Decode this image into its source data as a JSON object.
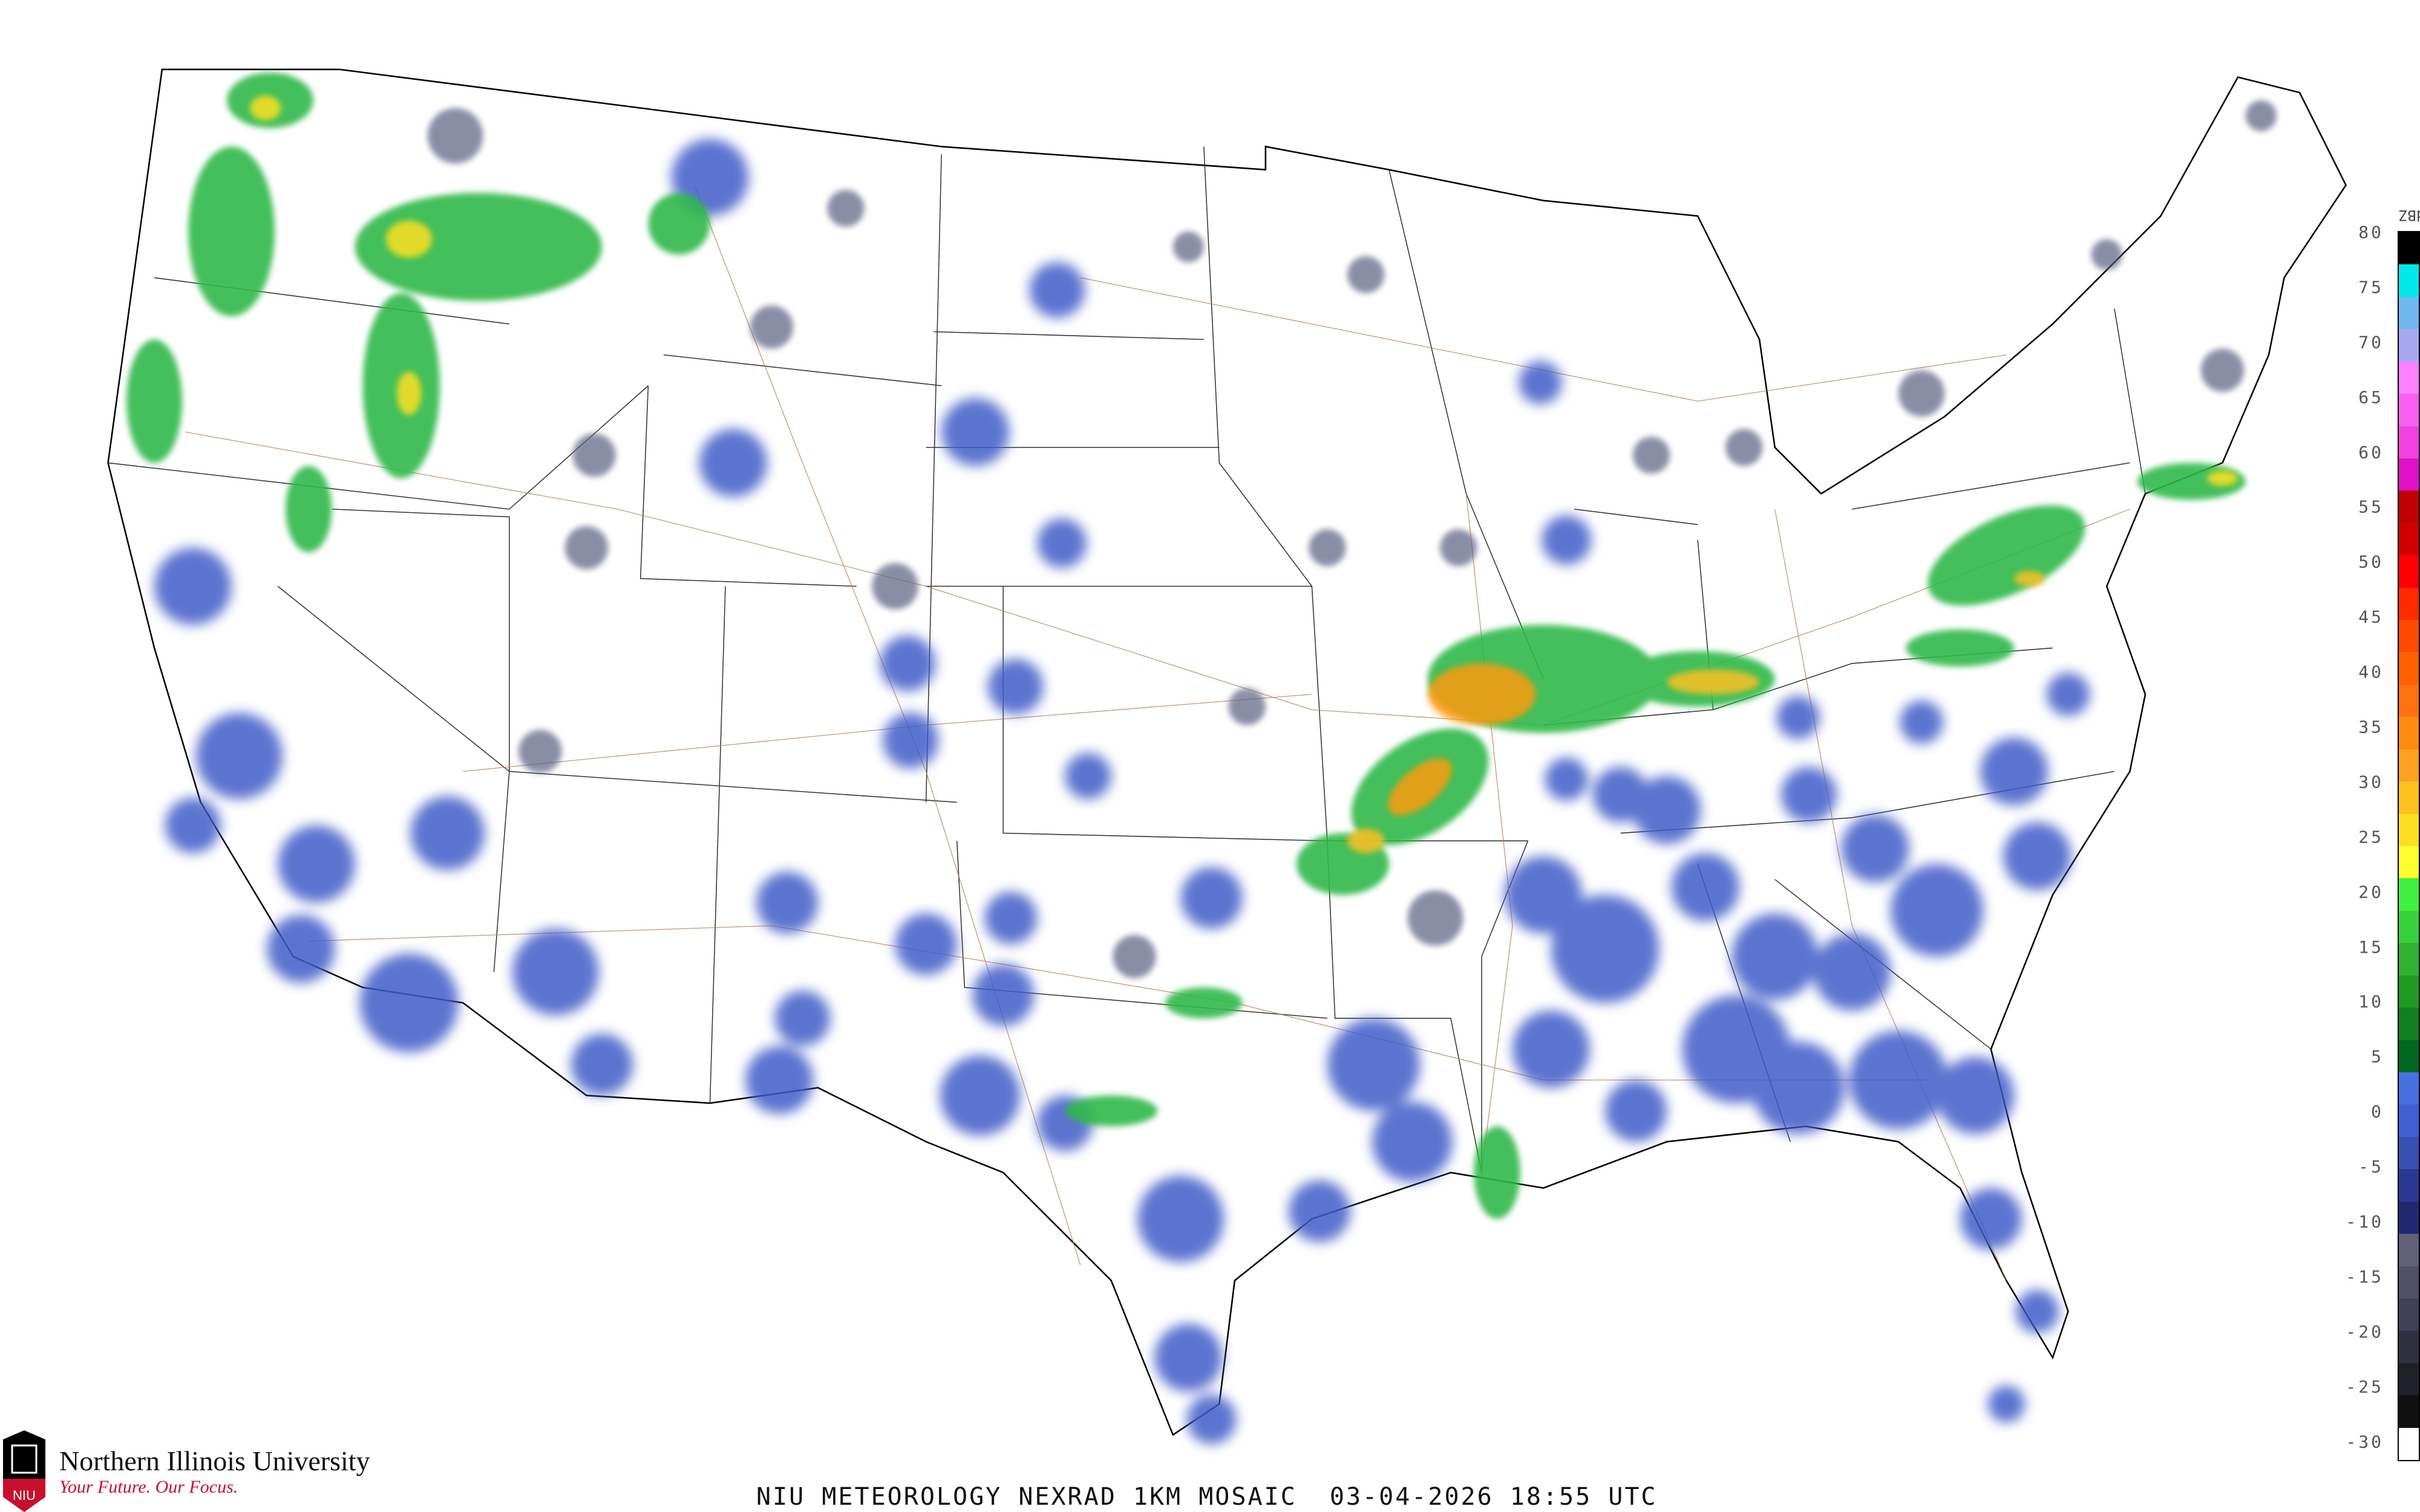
{
  "title": "NIU METEOROLOGY NEXRAD 1KM MOSAIC  03-04-2026 18:55 UTC",
  "logo": {
    "name": "Northern Illinois University",
    "tagline": "Your Future. Our Focus.",
    "mark": "NIU"
  },
  "legend": {
    "unit": "dBZ",
    "labels": [
      "80",
      "75",
      "70",
      "65",
      "60",
      "55",
      "50",
      "45",
      "40",
      "35",
      "30",
      "25",
      "20",
      "15",
      "10",
      "5",
      "0",
      "-5",
      "-10",
      "-15",
      "-20",
      "-25",
      "-30"
    ],
    "colors": [
      "#000000",
      "#00e8e8",
      "#70b8f0",
      "#a8a8f0",
      "#ff80ff",
      "#f860f0",
      "#f040e0",
      "#e010c8",
      "#c00000",
      "#d00000",
      "#ff0000",
      "#ff2a00",
      "#ff4a00",
      "#ff6000",
      "#ff7010",
      "#ff8a10",
      "#ffa020",
      "#ffc020",
      "#ffe020",
      "#ffff30",
      "#40f040",
      "#38d038",
      "#30b030",
      "#209a20",
      "#108020",
      "#006820",
      "#4870e0",
      "#4060d0",
      "#3850b0",
      "#2a3890",
      "#202870",
      "#606078",
      "#505068",
      "#404058",
      "#303040",
      "#202028",
      "#101010",
      "#ffffff"
    ]
  },
  "colors": {
    "low_echo": "#3f5bc8",
    "noise": "#5a5e80",
    "moderate": "#2fb84a",
    "heavy": "#ff9a10",
    "border": "#000000",
    "county": "#cfcfcf",
    "highway": "#c07850"
  }
}
